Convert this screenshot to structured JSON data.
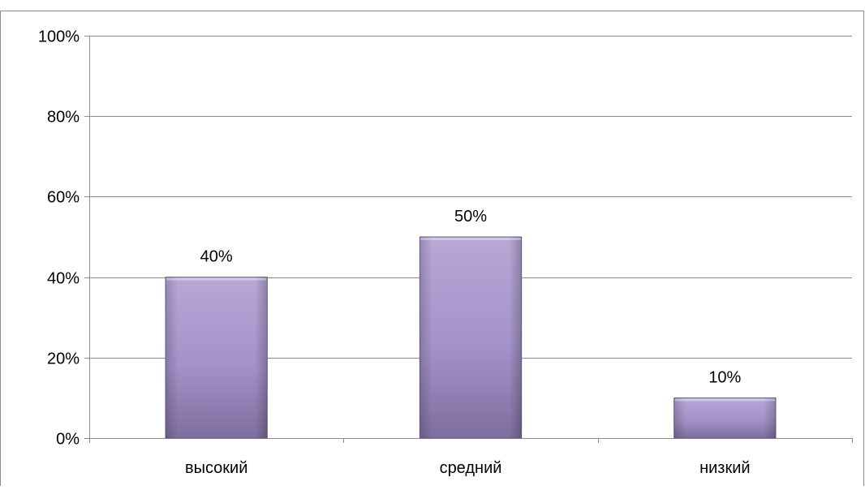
{
  "chart_data": {
    "type": "bar",
    "categories": [
      "высокий",
      "средний",
      "низкий"
    ],
    "values": [
      40,
      50,
      10
    ],
    "data_labels": [
      "40%",
      "50%",
      "10%"
    ],
    "yticks": [
      0,
      20,
      40,
      60,
      80,
      100
    ],
    "ytick_labels": [
      "0%",
      "20%",
      "40%",
      "60%",
      "80%",
      "100%"
    ],
    "ylim": [
      0,
      100
    ],
    "title": "",
    "xlabel": "",
    "ylabel": "",
    "grid": true,
    "legend": "none",
    "colors": {
      "bar_light": "#b7a8d6",
      "bar_mid": "#a292c8",
      "bar_dark": "#7f6f9e",
      "bar_edge": "#6e6090",
      "grid": "#8c8c8c",
      "axis": "#8c8c8c",
      "frame": "#8c8c8c"
    }
  }
}
